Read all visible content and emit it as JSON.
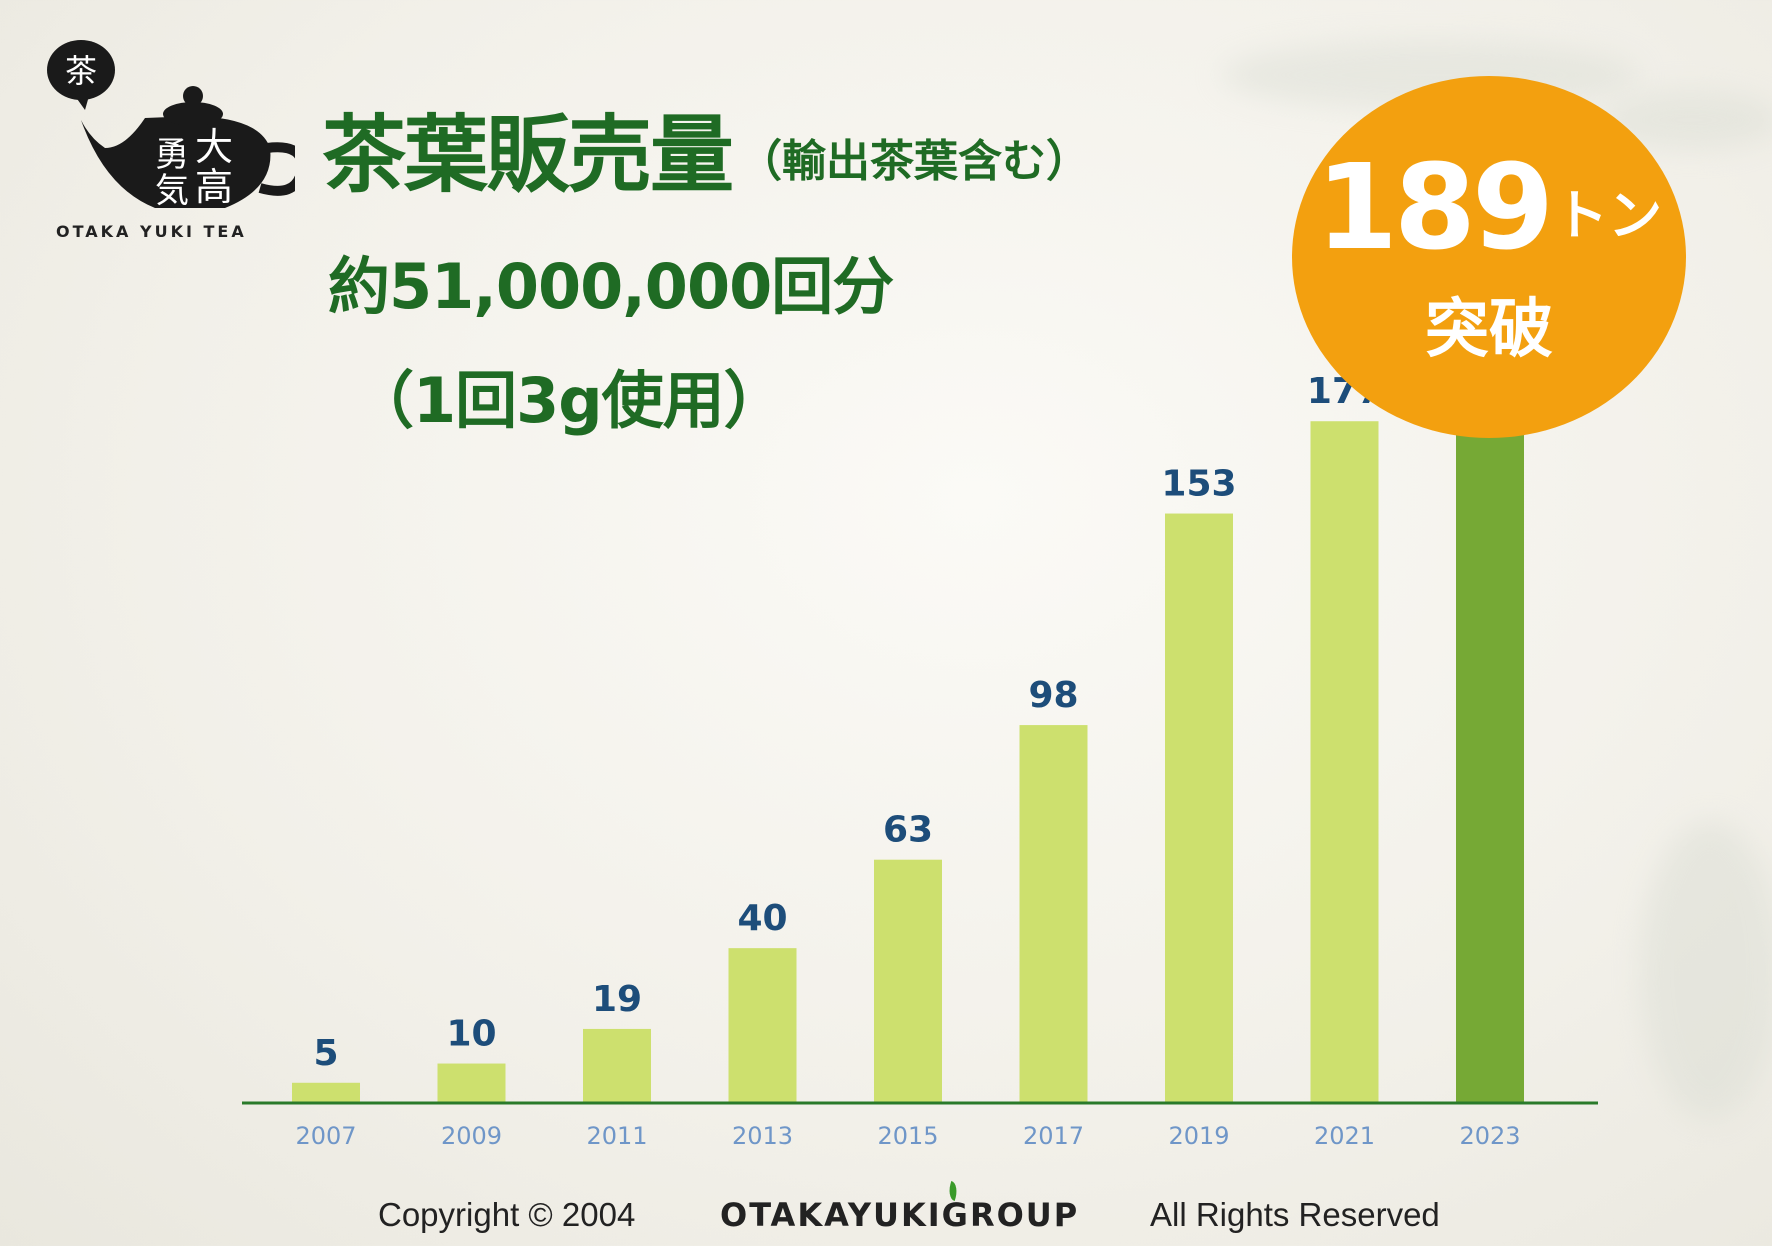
{
  "logo": {
    "text": "OTAKA YUKI TEA",
    "emblem_char": "茶",
    "name_chars": [
      "大",
      "高",
      "勇",
      "気"
    ]
  },
  "header": {
    "title": "茶葉販売量",
    "title_paren": "（輸出茶葉含む）",
    "subtitle_1": "約51,000,000回分",
    "subtitle_2": "（1回3g使用）"
  },
  "badge": {
    "value": "189",
    "unit": "トン",
    "text": "突破",
    "color": "#f3a00f"
  },
  "colors": {
    "title": "#1f6b24",
    "bar": "#cde06e",
    "bar_highlight": "#76a935",
    "axis": "#2a7a2a",
    "value_label": "#1d4d7a",
    "tick_label": "#6f96c8"
  },
  "chart_data": {
    "type": "bar",
    "categories": [
      "2007",
      "2009",
      "2011",
      "2013",
      "2015",
      "2017",
      "2019",
      "2021",
      "2023"
    ],
    "values": [
      5,
      10,
      19,
      40,
      63,
      98,
      153,
      177,
      189
    ],
    "data_labels": [
      "5",
      "10",
      "19",
      "40",
      "63",
      "98",
      "153",
      "177",
      ""
    ],
    "highlight_index": 8,
    "ylim": [
      0,
      260
    ],
    "grid": false,
    "legend": "none",
    "title": "",
    "xlabel": "",
    "ylabel": ""
  },
  "footer": {
    "copyright": "Copyright © 2004",
    "group": "OTAKAYUKIGROUP",
    "rights": "All Rights Reserved"
  }
}
